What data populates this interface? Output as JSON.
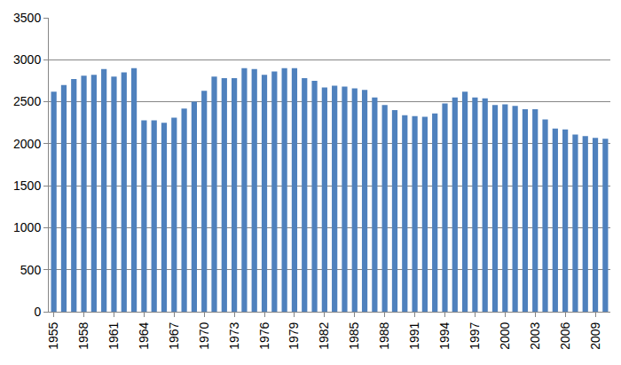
{
  "chart_data": {
    "type": "bar",
    "categories": [
      "1955",
      null,
      null,
      "1958",
      null,
      null,
      "1961",
      null,
      null,
      "1964",
      null,
      null,
      "1967",
      null,
      null,
      "1970",
      null,
      null,
      "1973",
      null,
      null,
      "1976",
      null,
      null,
      "1979",
      null,
      null,
      "1982",
      null,
      null,
      "1985",
      null,
      null,
      "1988",
      null,
      null,
      "1991",
      null,
      null,
      "1994",
      null,
      null,
      "1997",
      null,
      null,
      "2000",
      null,
      null,
      "2003",
      null,
      null,
      "2006",
      null,
      null,
      "2009",
      null
    ],
    "values": [
      2620,
      2700,
      2770,
      2810,
      2820,
      2890,
      2800,
      2850,
      2900,
      2280,
      2280,
      2250,
      2310,
      2420,
      2500,
      2630,
      2800,
      2780,
      2780,
      2900,
      2890,
      2820,
      2860,
      2900,
      2900,
      2780,
      2750,
      2670,
      2690,
      2680,
      2660,
      2640,
      2550,
      2460,
      2400,
      2340,
      2330,
      2320,
      2360,
      2480,
      2550,
      2620,
      2550,
      2540,
      2460,
      2470,
      2450,
      2410,
      2410,
      2290,
      2180,
      2170,
      2110,
      2090,
      2070,
      2060
    ],
    "color": "#4f81bd",
    "ylim": [
      0,
      3500
    ],
    "yticks": [
      0,
      500,
      1000,
      1500,
      2000,
      2500,
      3000,
      3500
    ],
    "grid": true
  }
}
